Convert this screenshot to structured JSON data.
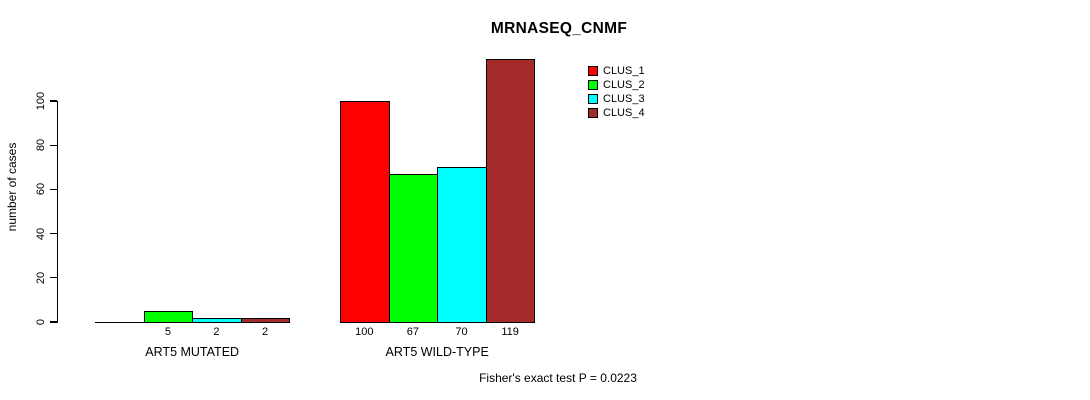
{
  "chart_data": {
    "type": "bar",
    "title": "MRNASEQ_CNMF",
    "ylabel": "number of cases",
    "yticks": [
      0,
      20,
      40,
      60,
      80,
      100
    ],
    "axis_range": [
      0,
      100
    ],
    "categories": [
      "ART5 MUTATED",
      "ART5 WILD-TYPE"
    ],
    "series": [
      {
        "name": "CLUS_1",
        "color": "#FF0000",
        "values": [
          0,
          100
        ]
      },
      {
        "name": "CLUS_2",
        "color": "#00FF00",
        "values": [
          5,
          67
        ]
      },
      {
        "name": "CLUS_3",
        "color": "#00FFFF",
        "values": [
          2,
          70
        ]
      },
      {
        "name": "CLUS_4",
        "color": "#A52A2A",
        "values": [
          2,
          119
        ]
      }
    ],
    "bar_labels": [
      [
        "",
        "5",
        "2",
        "2"
      ],
      [
        "100",
        "67",
        "70",
        "119"
      ]
    ],
    "annotation": "Fisher's exact test P = 0.0223",
    "legend_position": "top-right",
    "grid": false
  }
}
